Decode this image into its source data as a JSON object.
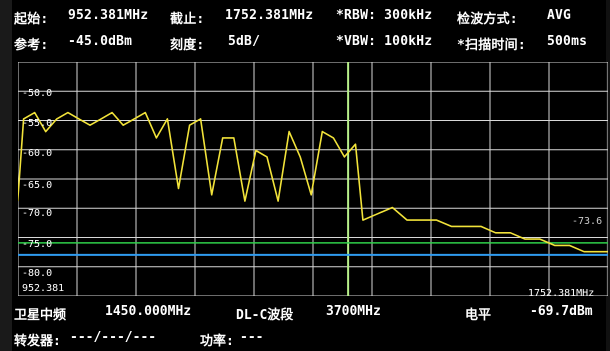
{
  "header": {
    "start_label": "起始:",
    "start_value": "952.381MHz",
    "stop_label": "截止:",
    "stop_value": "1752.381MHz",
    "rbw": "*RBW: 300kHz",
    "detect_label": "检波方式:",
    "detect_value": "AVG",
    "ref_label": "参考:",
    "ref_value": "-45.0dBm",
    "scale_label": "刻度:",
    "scale_value": "5dB/",
    "vbw": "*VBW: 100kHz",
    "sweep_label": "*扫描时间:",
    "sweep_value": "500ms"
  },
  "plot": {
    "y_labels": [
      "-50.0",
      "-55.0",
      "-60.0",
      "-65.0",
      "-70.0",
      "-75.0",
      "-80.0"
    ],
    "x_start": "952.381",
    "x_end": "1752.381MHz",
    "threshold_value": "-73.6",
    "colors": {
      "trace": "#f2e33a",
      "green_line": "#2fd14a",
      "blue_line": "#2f9bf0",
      "marker": "#b8f08a",
      "grid": "#d8d8d8"
    }
  },
  "footer": {
    "if_label": "卫星中频",
    "if_value": "1450.000MHz",
    "band_label": "DL-C波段",
    "band_value": "3700MHz",
    "level_label": "电平",
    "level_value": "-69.7dBm",
    "transponder_label": "转发器:",
    "transponder_value": "---/---/---",
    "power_label": "功率:",
    "power_value": "---"
  },
  "chart_data": {
    "type": "line",
    "xlim": [
      952.381,
      1752.381
    ],
    "ylim": [
      -82.0,
      -45.0
    ],
    "grid": true,
    "series": [
      {
        "values_x": [
          952,
          960,
          975,
          990,
          1005,
          1020,
          1035,
          1050,
          1065,
          1080,
          1095,
          1110,
          1125,
          1140,
          1155,
          1170,
          1185,
          1200,
          1215,
          1230,
          1245,
          1260,
          1275,
          1290,
          1305,
          1320,
          1335,
          1350,
          1365,
          1380,
          1395,
          1410,
          1420,
          1440,
          1460,
          1480,
          1500,
          1520,
          1540,
          1560,
          1580,
          1600,
          1620,
          1640,
          1660,
          1680,
          1700,
          1720,
          1740,
          1752
        ],
        "values_y": [
          -67,
          -54,
          -53,
          -56,
          -54,
          -53,
          -54,
          -55,
          -54,
          -53,
          -55,
          -54,
          -53,
          -57,
          -54,
          -65,
          -55,
          -54,
          -66,
          -57,
          -57,
          -67,
          -59,
          -60,
          -67,
          -56,
          -60,
          -66,
          -56,
          -57,
          -60,
          -58,
          -70,
          -69,
          -68,
          -70,
          -70,
          -70,
          -71,
          -71,
          -71,
          -72,
          -72,
          -73,
          -73,
          -74,
          -74,
          -75,
          -75,
          -75
        ]
      }
    ],
    "hlines": [
      -73.6,
      -75.5
    ],
    "vline_x": 1400
  }
}
